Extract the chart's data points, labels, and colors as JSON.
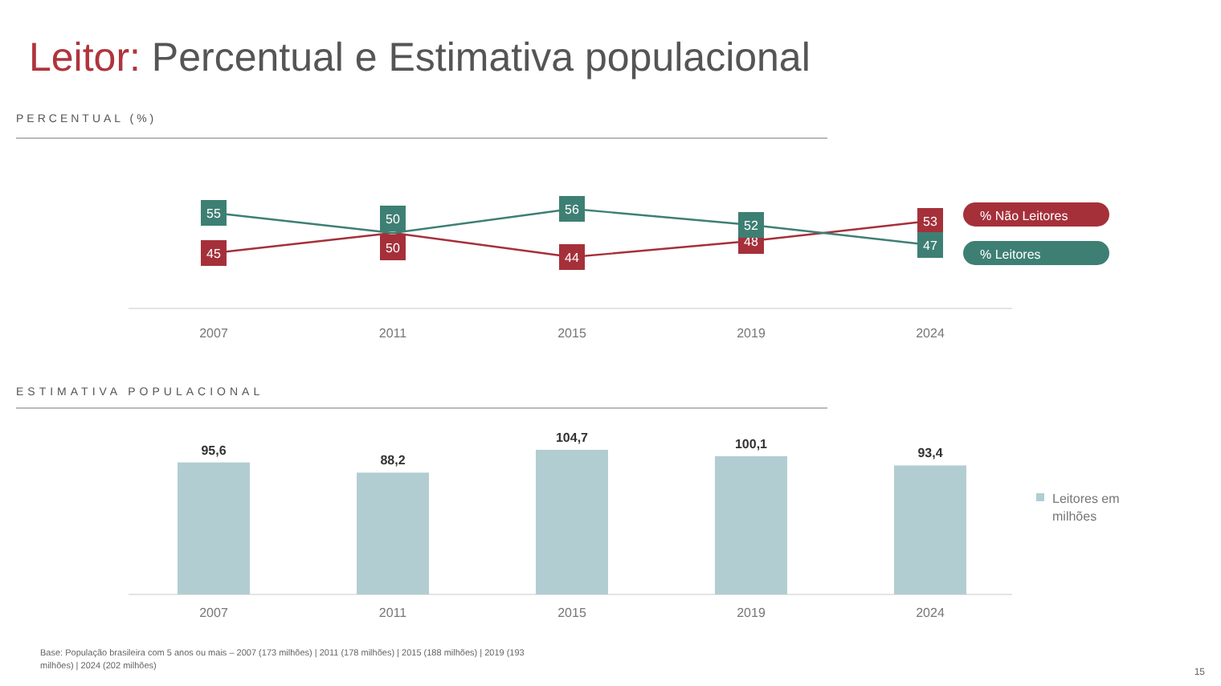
{
  "chart_data": [
    {
      "type": "line",
      "title": "Leitor: Percentual e Estimativa populacional",
      "subtitle": "PERCENTUAL (%)",
      "categories": [
        "2007",
        "2011",
        "2015",
        "2019",
        "2024"
      ],
      "series": [
        {
          "name": "% Não Leitores",
          "color": "#a5303a",
          "values": [
            45,
            50,
            44,
            48,
            53
          ]
        },
        {
          "name": "% Leitores",
          "color": "#3e7f74",
          "values": [
            55,
            50,
            56,
            52,
            47
          ]
        }
      ],
      "data_labels": true,
      "marker": "square",
      "legend": "right",
      "grid": false
    },
    {
      "type": "bar",
      "title": "ESTIMATIVA POPULACIONAL",
      "categories": [
        "2007",
        "2011",
        "2015",
        "2019",
        "2024"
      ],
      "series": [
        {
          "name": "Leitores em milhões",
          "color": "#b2cdd2",
          "values": [
            95.6,
            88.2,
            104.7,
            100.1,
            93.4
          ],
          "value_labels": [
            "95,6",
            "88,2",
            "104,7",
            "100,1",
            "93,4"
          ]
        }
      ],
      "legend": "right",
      "annotations": [
        "Base: População brasileira com 5 anos ou mais – 2007 (173 milhões) | 2011 (178 milhões) | 2015 (188 milhões) | 2019 (193 milhões) | 2024 (202 milhões)",
        "15"
      ]
    }
  ]
}
